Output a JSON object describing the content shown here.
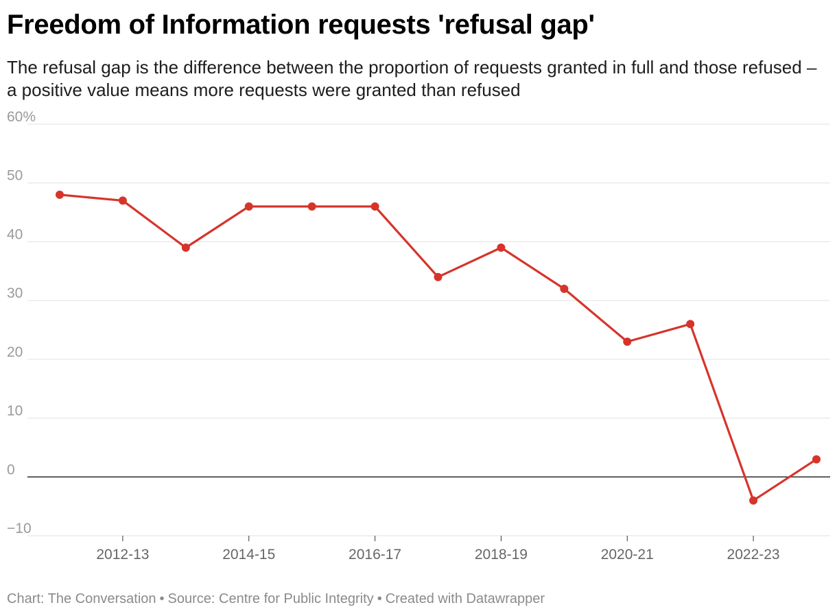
{
  "title": "Freedom of Information requests 'refusal gap'",
  "subtitle": "The refusal gap is the difference between the proportion of requests granted in full and those refused – a positive value means more requests were granted than refused",
  "footer": {
    "chart_credit": "Chart: The Conversation",
    "source": "Source: Centre for Public Integrity",
    "created_with": "Created with Datawrapper"
  },
  "colors": {
    "line": "#d6342a",
    "grid": "#e0e0e0",
    "zero_line": "#000000"
  },
  "chart_data": {
    "type": "line",
    "title": "Freedom of Information requests 'refusal gap'",
    "xlabel": "",
    "ylabel": "",
    "ylim": [
      -10,
      60
    ],
    "y_ticks": [
      {
        "value": 60,
        "label": "60%"
      },
      {
        "value": 50,
        "label": "50"
      },
      {
        "value": 40,
        "label": "40"
      },
      {
        "value": 30,
        "label": "30"
      },
      {
        "value": 20,
        "label": "20"
      },
      {
        "value": 10,
        "label": "10"
      },
      {
        "value": 0,
        "label": "0"
      },
      {
        "value": -10,
        "label": "−10"
      }
    ],
    "x": [
      "2011-12",
      "2012-13",
      "2013-14",
      "2014-15",
      "2015-16",
      "2016-17",
      "2017-18",
      "2018-19",
      "2019-20",
      "2020-21",
      "2021-22",
      "2022-23",
      "2023-24"
    ],
    "x_tick_labels": [
      "2012-13",
      "2014-15",
      "2016-17",
      "2018-19",
      "2020-21",
      "2022-23"
    ],
    "series": [
      {
        "name": "Refusal gap",
        "values": [
          48,
          47,
          39,
          46,
          46,
          46,
          34,
          39,
          32,
          23,
          26,
          -4,
          3
        ]
      }
    ]
  }
}
